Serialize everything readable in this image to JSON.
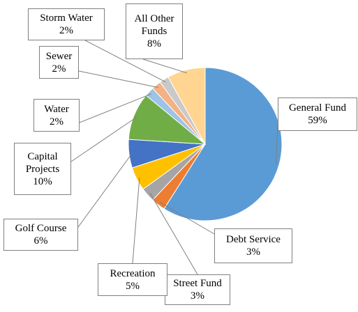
{
  "chart_data": {
    "type": "pie",
    "categories": [
      "General Fund",
      "Debt Service",
      "Street Fund",
      "Recreation",
      "Golf Course",
      "Capital Projects",
      "Water",
      "Sewer",
      "Storm Water",
      "All Other Funds"
    ],
    "values": [
      59,
      3,
      3,
      5,
      6,
      10,
      2,
      2,
      2,
      8
    ],
    "value_labels": [
      "59%",
      "3%",
      "3%",
      "5%",
      "6%",
      "10%",
      "2%",
      "2%",
      "2%",
      "8%"
    ],
    "colors": [
      "#5b9bd5",
      "#ed7d31",
      "#a5a5a5",
      "#ffc000",
      "#4472c4",
      "#70ad47",
      "#9dc3e6",
      "#f4b183",
      "#c9c9c9",
      "#ffd591"
    ]
  }
}
